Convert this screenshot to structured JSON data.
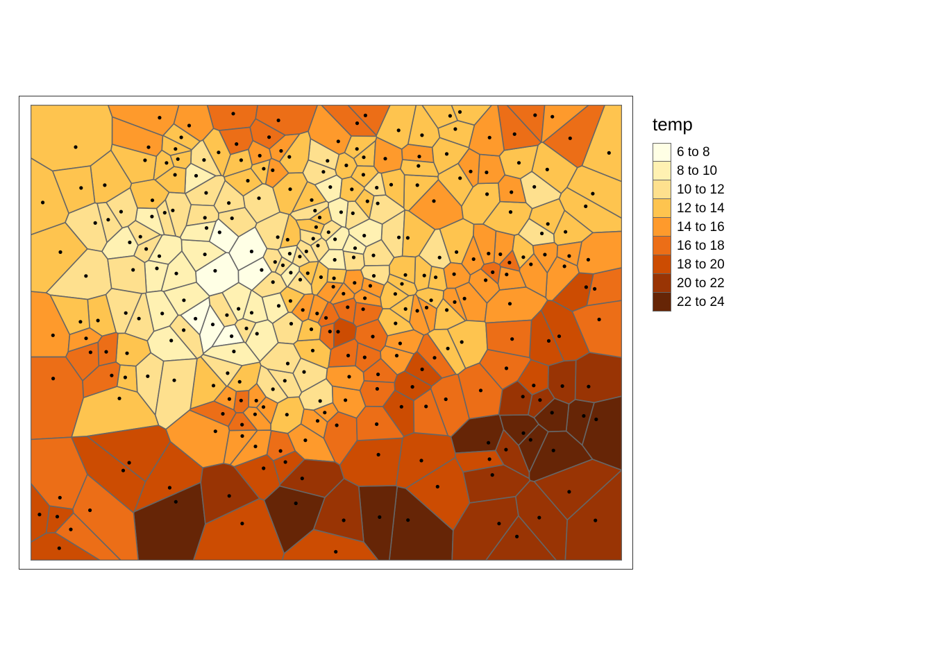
{
  "legend": {
    "title": "temp",
    "classes": [
      {
        "label": "6 to 8",
        "color": "#FFFFE5"
      },
      {
        "label": "8 to 10",
        "color": "#FFF1B2"
      },
      {
        "label": "10 to 12",
        "color": "#FEE08E"
      },
      {
        "label": "12 to 14",
        "color": "#FEC44F"
      },
      {
        "label": "14 to 16",
        "color": "#FE9A2C"
      },
      {
        "label": "16 to 18",
        "color": "#EC6E17"
      },
      {
        "label": "18 to 20",
        "color": "#CC4C02"
      },
      {
        "label": "20 to 22",
        "color": "#993404"
      },
      {
        "label": "22 to 24",
        "color": "#662506"
      }
    ]
  },
  "map_data": {
    "type": "voronoi-choropleth",
    "variable": "temp",
    "cell_border_color": "#666666",
    "point_color": "#000000"
  }
}
